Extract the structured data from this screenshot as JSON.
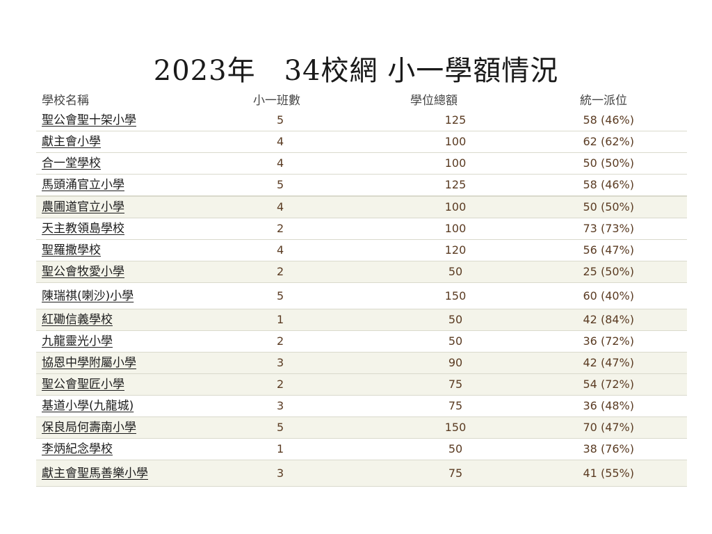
{
  "title": "2023年　34校網 小一學額情況",
  "headers": {
    "school": "學校名稱",
    "classes": "小一班數",
    "total": "學位總額",
    "central": "統一派位"
  },
  "rows": [
    {
      "school": "聖公會聖十架小學",
      "classes": "5",
      "total": "125",
      "central": "58 (46%)"
    },
    {
      "school": "獻主會小學",
      "classes": "4",
      "total": "100",
      "central": "62 (62%)"
    },
    {
      "school": "合一堂學校",
      "classes": "4",
      "total": "100",
      "central": "50 (50%)"
    },
    {
      "school": "馬頭涌官立小學",
      "classes": "5",
      "total": "125",
      "central": "58 (46%)"
    },
    {
      "school": "農圃道官立小學",
      "classes": "4",
      "total": "100",
      "central": "50 (50%)"
    },
    {
      "school": "天主教領島學校",
      "classes": "2",
      "total": "100",
      "central": "73 (73%)"
    },
    {
      "school": "聖羅撒學校",
      "classes": "4",
      "total": "120",
      "central": "56 (47%)"
    },
    {
      "school": "聖公會牧愛小學",
      "classes": "2",
      "total": "50",
      "central": "25 (50%)"
    },
    {
      "school": "陳瑞祺(喇沙)小學",
      "classes": "5",
      "total": "150",
      "central": "60 (40%)"
    },
    {
      "school": "紅磡信義學校",
      "classes": "1",
      "total": "50",
      "central": "42 (84%)"
    },
    {
      "school": "九龍靈光小學",
      "classes": "2",
      "total": "50",
      "central": "36 (72%)"
    },
    {
      "school": "協恩中學附屬小學",
      "classes": "3",
      "total": "90",
      "central": "42 (47%)"
    },
    {
      "school": "聖公會聖匠小學",
      "classes": "2",
      "total": "75",
      "central": "54 (72%)"
    },
    {
      "school": "基道小學(九龍城)",
      "classes": "3",
      "total": "75",
      "central": "36 (48%)"
    },
    {
      "school": "保良局何壽南小學",
      "classes": "5",
      "total": "150",
      "central": "70 (47%)"
    },
    {
      "school": "李炳紀念學校",
      "classes": "1",
      "total": "50",
      "central": "38 (76%)"
    },
    {
      "school": "獻主會聖馬善樂小學",
      "classes": "3",
      "total": "75",
      "central": "41 (55%)"
    }
  ]
}
